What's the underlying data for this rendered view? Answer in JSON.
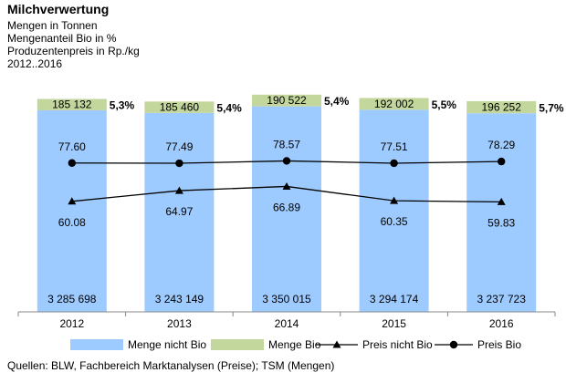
{
  "header": {
    "title": "Milchverwertung",
    "line1": "Mengen in Tonnen",
    "line2": "Mengenanteil Bio in %",
    "line3": "Produzentenpreis in Rp./kg",
    "line4": "2012..2016"
  },
  "source": "Quellen: BLW, Fachbereich Marktanalysen (Preise); TSM (Mengen)",
  "colors": {
    "nichtBio": "#9ecbff",
    "bio": "#c3d69b",
    "line": "#000000"
  },
  "chart_data": {
    "type": "bar+line",
    "categories": [
      "2012",
      "2013",
      "2014",
      "2015",
      "2016"
    ],
    "series": [
      {
        "name": "Menge nicht Bio",
        "type": "stacked-bar",
        "values": [
          3285698,
          3243149,
          3350015,
          3294174,
          3237723
        ],
        "labels": [
          "3 285 698",
          "3 243 149",
          "3 350 015",
          "3 294 174",
          "3 237 723"
        ]
      },
      {
        "name": "Menge Bio",
        "type": "stacked-bar",
        "values": [
          185132,
          185460,
          190522,
          192002,
          196252
        ],
        "labels": [
          "185 132",
          "185 460",
          "190 522",
          "192 002",
          "196 252"
        ]
      },
      {
        "name": "Preis nicht Bio",
        "type": "line",
        "marker": "triangle",
        "values": [
          60.08,
          64.97,
          66.89,
          60.35,
          59.83
        ],
        "labels": [
          "60.08",
          "64.97",
          "66.89",
          "60.35",
          "59.83"
        ]
      },
      {
        "name": "Preis Bio",
        "type": "line",
        "marker": "circle",
        "values": [
          77.6,
          77.49,
          78.57,
          77.51,
          78.29
        ],
        "labels": [
          "77.60",
          "77.49",
          "78.57",
          "77.51",
          "78.29"
        ]
      }
    ],
    "bio_share_labels": [
      "5,3%",
      "5,4%",
      "5,4%",
      "5,5%",
      "5,7%"
    ]
  }
}
